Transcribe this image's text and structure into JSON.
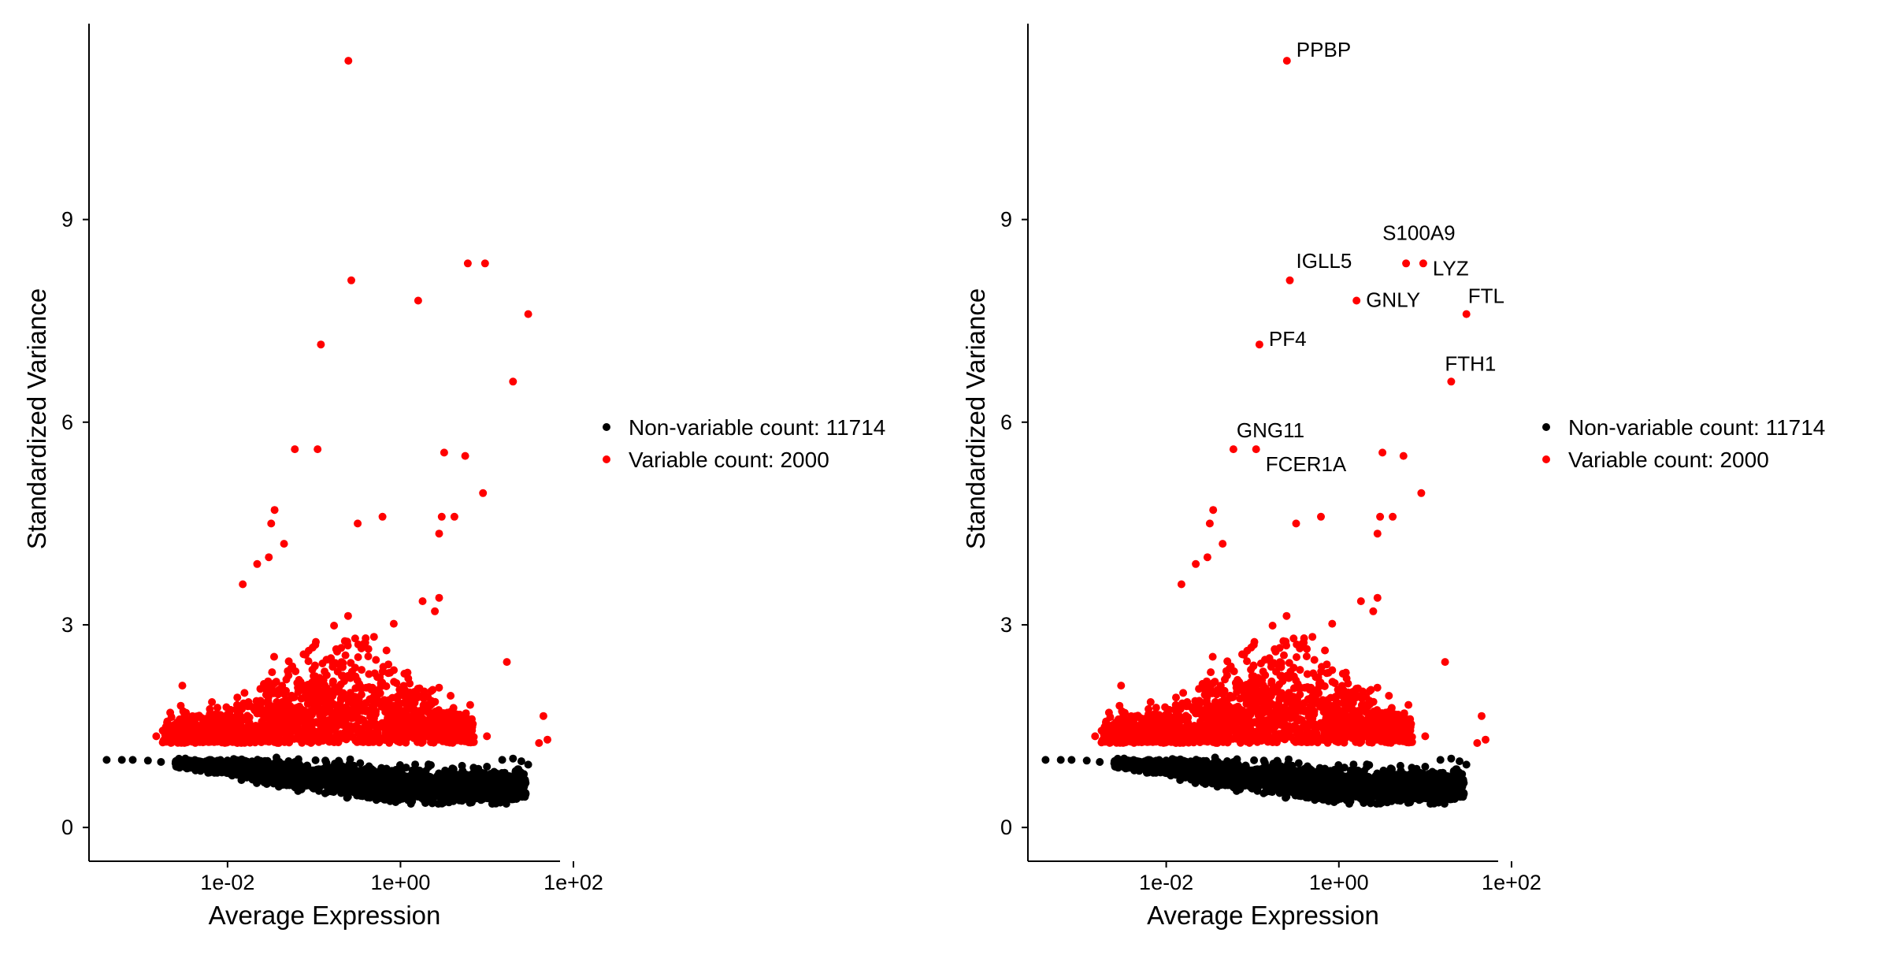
{
  "chart_data": [
    {
      "type": "scatter",
      "xlabel": "Average Expression",
      "ylabel": "Standardized Variance",
      "x_scale": "log10",
      "xlim": [
        0.00025,
        70
      ],
      "ylim": [
        -0.5,
        11.9
      ],
      "x_ticks": [
        0.01,
        1,
        100
      ],
      "x_tick_labels": [
        "1e-02",
        "1e+00",
        "1e+02"
      ],
      "y_ticks": [
        0,
        3,
        6,
        9
      ],
      "y_tick_labels": [
        "0",
        "3",
        "6",
        "9"
      ],
      "grid": false,
      "legend_position": "right",
      "legend": [
        {
          "label": "Non-variable count: 11714",
          "color": "#000000"
        },
        {
          "label": "Variable count: 2000",
          "color": "#ff0000"
        }
      ],
      "series": [
        {
          "name": "Non-variable count: 11714",
          "color": "#000000",
          "points": [
            [
              0.0004,
              1.0
            ],
            [
              0.0006,
              1.0
            ],
            [
              0.0008,
              1.0
            ],
            [
              0.0012,
              0.99
            ],
            [
              0.0017,
              0.97
            ],
            [
              0.0025,
              0.95
            ],
            [
              0.004,
              0.92
            ],
            [
              0.006,
              0.9
            ],
            [
              0.01,
              0.86
            ],
            [
              0.02,
              0.8
            ],
            [
              0.05,
              0.72
            ],
            [
              0.1,
              0.66
            ],
            [
              0.2,
              0.6
            ],
            [
              0.5,
              0.55
            ],
            [
              1.2,
              0.6
            ],
            [
              3,
              0.62
            ],
            [
              6,
              0.75
            ],
            [
              10,
              0.9
            ],
            [
              15,
              1.0
            ],
            [
              20,
              1.02
            ],
            [
              25,
              0.98
            ],
            [
              30,
              0.93
            ]
          ]
        },
        {
          "name": "Variable count: 2000",
          "color": "#ff0000",
          "points": [
            [
              0.25,
              11.35
            ],
            [
              0.27,
              8.1
            ],
            [
              6,
              8.35
            ],
            [
              9.5,
              8.35
            ],
            [
              1.6,
              7.8
            ],
            [
              0.12,
              7.15
            ],
            [
              30,
              7.6
            ],
            [
              20,
              6.6
            ],
            [
              0.06,
              5.6
            ],
            [
              0.11,
              5.6
            ],
            [
              3.2,
              5.55
            ],
            [
              5.6,
              5.5
            ],
            [
              0.035,
              4.7
            ],
            [
              0.032,
              4.5
            ],
            [
              0.045,
              4.2
            ],
            [
              0.03,
              4.0
            ],
            [
              0.022,
              3.9
            ],
            [
              0.015,
              3.6
            ],
            [
              0.32,
              4.5
            ],
            [
              0.62,
              4.6
            ],
            [
              3.0,
              4.6
            ],
            [
              4.2,
              4.6
            ],
            [
              2.8,
              4.35
            ],
            [
              9.0,
              4.95
            ],
            [
              2.8,
              3.4
            ],
            [
              1.8,
              3.35
            ],
            [
              2.5,
              3.2
            ],
            [
              1.2,
              1.9
            ],
            [
              3.8,
              1.95
            ],
            [
              17,
              2.45
            ],
            [
              45,
              1.65
            ],
            [
              50,
              1.3
            ],
            [
              40,
              1.25
            ],
            [
              10,
              1.35
            ],
            [
              0.0015,
              1.35
            ],
            [
              0.002,
              1.55
            ],
            [
              0.003,
              2.1
            ]
          ]
        }
      ]
    },
    {
      "type": "scatter",
      "xlabel": "Average Expression",
      "ylabel": "Standardized Variance",
      "x_scale": "log10",
      "xlim": [
        0.00025,
        70
      ],
      "ylim": [
        -0.5,
        11.9
      ],
      "x_ticks": [
        0.01,
        1,
        100
      ],
      "x_tick_labels": [
        "1e-02",
        "1e+00",
        "1e+02"
      ],
      "y_ticks": [
        0,
        3,
        6,
        9
      ],
      "y_tick_labels": [
        "0",
        "3",
        "6",
        "9"
      ],
      "grid": false,
      "legend_position": "right",
      "legend": [
        {
          "label": "Non-variable count: 11714",
          "color": "#000000"
        },
        {
          "label": "Variable count: 2000",
          "color": "#ff0000"
        }
      ],
      "series": [
        {
          "name": "Non-variable count: 11714",
          "color": "#000000",
          "points": [
            [
              0.0004,
              1.0
            ],
            [
              0.0006,
              1.0
            ],
            [
              0.0008,
              1.0
            ],
            [
              0.0012,
              0.99
            ],
            [
              0.0017,
              0.97
            ],
            [
              0.0025,
              0.95
            ],
            [
              0.004,
              0.92
            ],
            [
              0.006,
              0.9
            ],
            [
              0.01,
              0.86
            ],
            [
              0.02,
              0.8
            ],
            [
              0.05,
              0.72
            ],
            [
              0.1,
              0.66
            ],
            [
              0.2,
              0.6
            ],
            [
              0.5,
              0.55
            ],
            [
              1.2,
              0.6
            ],
            [
              3,
              0.62
            ],
            [
              6,
              0.75
            ],
            [
              10,
              0.9
            ],
            [
              15,
              1.0
            ],
            [
              20,
              1.02
            ],
            [
              25,
              0.98
            ],
            [
              30,
              0.93
            ]
          ]
        },
        {
          "name": "Variable count: 2000",
          "color": "#ff0000",
          "points": [
            [
              0.25,
              11.35
            ],
            [
              0.27,
              8.1
            ],
            [
              6,
              8.35
            ],
            [
              9.5,
              8.35
            ],
            [
              1.6,
              7.8
            ],
            [
              0.12,
              7.15
            ],
            [
              30,
              7.6
            ],
            [
              20,
              6.6
            ],
            [
              0.06,
              5.6
            ],
            [
              0.11,
              5.6
            ],
            [
              3.2,
              5.55
            ],
            [
              5.6,
              5.5
            ],
            [
              0.035,
              4.7
            ],
            [
              0.032,
              4.5
            ],
            [
              0.045,
              4.2
            ],
            [
              0.03,
              4.0
            ],
            [
              0.022,
              3.9
            ],
            [
              0.015,
              3.6
            ],
            [
              0.32,
              4.5
            ],
            [
              0.62,
              4.6
            ],
            [
              3.0,
              4.6
            ],
            [
              4.2,
              4.6
            ],
            [
              2.8,
              4.35
            ],
            [
              9.0,
              4.95
            ],
            [
              2.8,
              3.4
            ],
            [
              1.8,
              3.35
            ],
            [
              2.5,
              3.2
            ],
            [
              1.2,
              1.9
            ],
            [
              3.8,
              1.95
            ],
            [
              17,
              2.45
            ],
            [
              45,
              1.65
            ],
            [
              50,
              1.3
            ],
            [
              40,
              1.25
            ],
            [
              10,
              1.35
            ],
            [
              0.0015,
              1.35
            ],
            [
              0.002,
              1.55
            ],
            [
              0.003,
              2.1
            ]
          ]
        }
      ],
      "annotations": [
        {
          "text": "PPBP",
          "x": 0.25,
          "y": 11.35
        },
        {
          "text": "S100A9",
          "x": 6,
          "y": 8.35
        },
        {
          "text": "IGLL5",
          "x": 0.27,
          "y": 8.1
        },
        {
          "text": "LYZ",
          "x": 9.5,
          "y": 8.35
        },
        {
          "text": "GNLY",
          "x": 1.6,
          "y": 7.8
        },
        {
          "text": "FTL",
          "x": 30,
          "y": 7.6
        },
        {
          "text": "PF4",
          "x": 0.12,
          "y": 7.15
        },
        {
          "text": "FTH1",
          "x": 20,
          "y": 6.6
        },
        {
          "text": "GNG11",
          "x": 0.06,
          "y": 5.6
        },
        {
          "text": "FCER1A",
          "x": 0.11,
          "y": 5.6
        }
      ]
    }
  ]
}
